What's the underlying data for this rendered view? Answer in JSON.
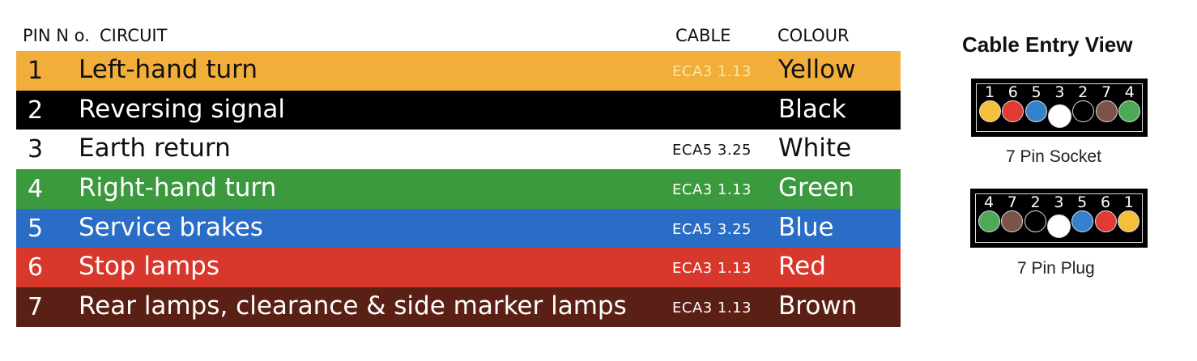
{
  "headers": {
    "pin": "PIN N o.",
    "circuit": "CIRCUIT",
    "cable": "CABLE",
    "colour": "COLOUR"
  },
  "rows": [
    {
      "pin": "1",
      "circuit": "Left-hand turn",
      "cable": "ECA3 1.13",
      "colour": "Yellow",
      "bg": "#f2ae3b",
      "fg": "#111111",
      "cable_fg": "#fbe7a6"
    },
    {
      "pin": "2",
      "circuit": "Reversing signal",
      "cable": "",
      "colour": "Black",
      "bg": "#000000",
      "fg": "#ffffff",
      "cable_fg": "#ffffff"
    },
    {
      "pin": "3",
      "circuit": "Earth return",
      "cable": "ECA5 3.25",
      "colour": "White",
      "bg": "#ffffff",
      "fg": "#111111",
      "cable_fg": "#111111"
    },
    {
      "pin": "4",
      "circuit": "Right-hand turn",
      "cable": "ECA3 1.13",
      "colour": "Green",
      "bg": "#3b9a3d",
      "fg": "#ffffff",
      "cable_fg": "#ffffff"
    },
    {
      "pin": "5",
      "circuit": "Service brakes",
      "cable": "ECA5 3.25",
      "colour": "Blue",
      "bg": "#2a6dc6",
      "fg": "#ffffff",
      "cable_fg": "#ffffff"
    },
    {
      "pin": "6",
      "circuit": "Stop lamps",
      "cable": "ECA3 1.13",
      "colour": "Red",
      "bg": "#d8382c",
      "fg": "#ffffff",
      "cable_fg": "#ffffff"
    },
    {
      "pin": "7",
      "circuit": "Rear lamps, clearance & side marker lamps",
      "cable": "ECA3 1.13",
      "colour": "Brown",
      "bg": "#5b2015",
      "fg": "#ffffff",
      "cable_fg": "#ffffff"
    }
  ],
  "entry_view": {
    "title": "Cable Entry View",
    "socket": {
      "label": "7 Pin Socket",
      "pins": [
        "1",
        "6",
        "5",
        "3",
        "2",
        "7",
        "4"
      ]
    },
    "plug": {
      "label": "7 Pin Plug",
      "pins": [
        "4",
        "7",
        "2",
        "3",
        "5",
        "6",
        "1"
      ]
    },
    "pin_colors": {
      "1": "#f4bf3a",
      "2": "#000000",
      "3": "#ffffff",
      "4": "#4caa56",
      "5": "#3380cc",
      "6": "#e03a32",
      "7": "#7a5448"
    }
  }
}
